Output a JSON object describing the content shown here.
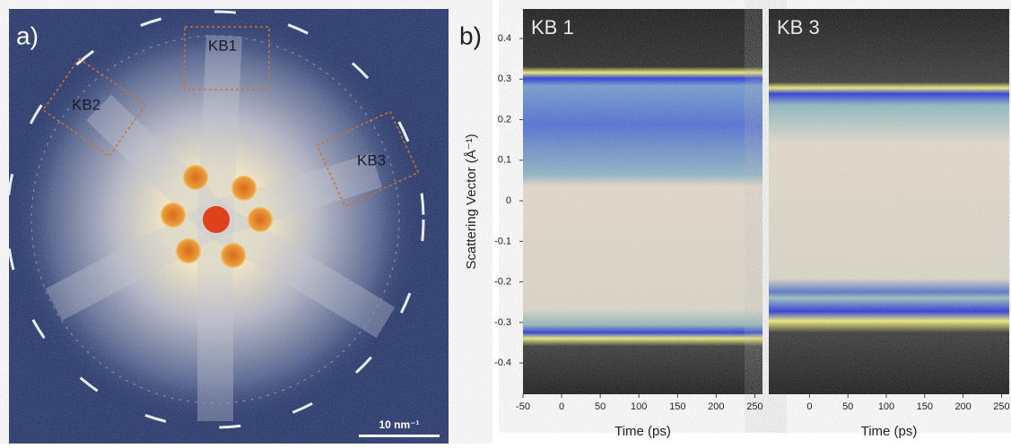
{
  "panel_a": {
    "label": "a)",
    "regions": [
      "KB1",
      "KB2",
      "KB3"
    ],
    "scale_bar": "10 nm⁻¹"
  },
  "panel_b": {
    "label": "b)",
    "y_label": "Scattering Vector (Å⁻¹)",
    "ylim": [
      -0.477,
      0.473
    ],
    "yticks": [
      0.4,
      0.3,
      0.2,
      0.1,
      0,
      -0.1,
      -0.2,
      -0.3,
      -0.4
    ],
    "plots": [
      {
        "title": "KB 1",
        "x_label": "Time (ps)",
        "xlim": [
          -50,
          260
        ],
        "xticks": [
          -50,
          0,
          50,
          100,
          150,
          200,
          250
        ]
      },
      {
        "title": "KB 3",
        "x_label": "Time (ps)",
        "xlim": [
          -53,
          260
        ],
        "xticks": [
          0,
          50,
          100,
          150,
          200,
          250
        ]
      }
    ]
  }
}
